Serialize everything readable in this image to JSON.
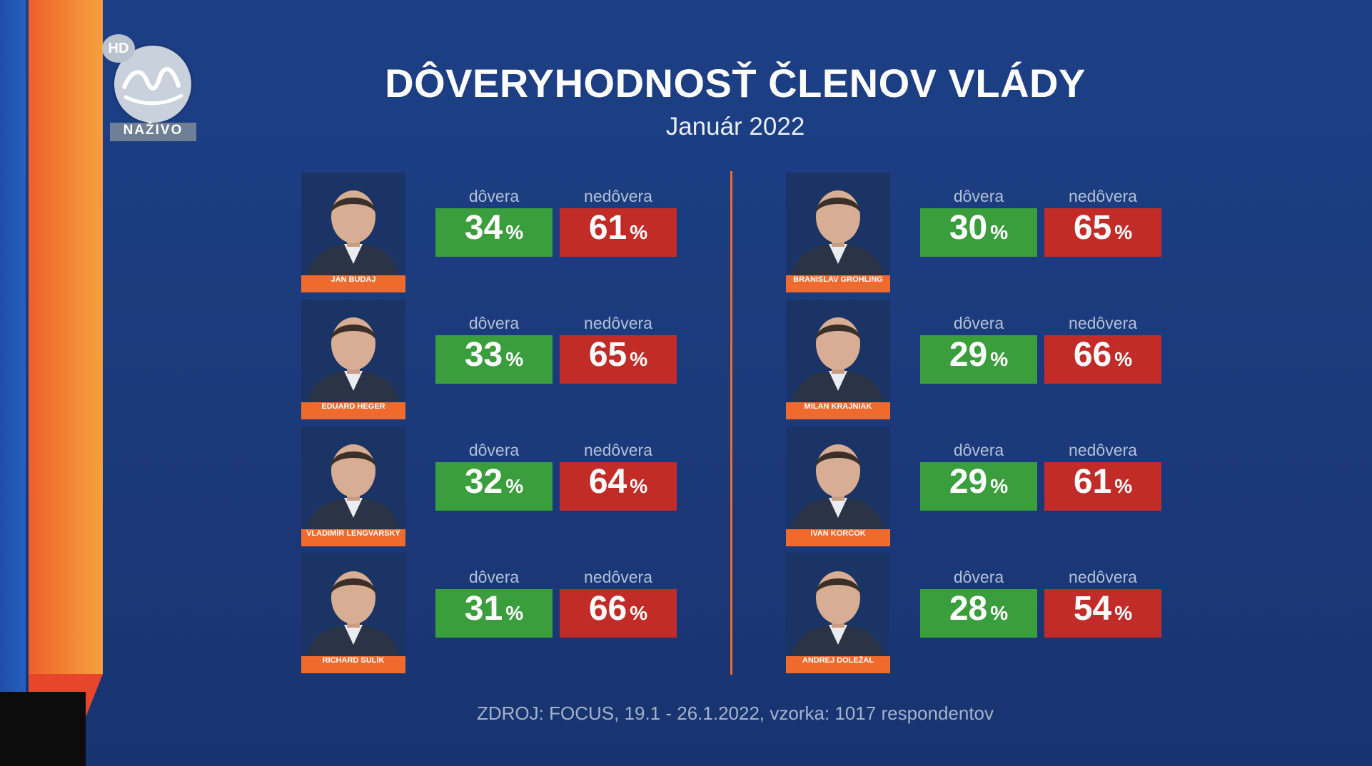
{
  "logo": {
    "hd_label": "HD",
    "live_label": "NAŽIVO"
  },
  "title": "DÔVERYHODNOSŤ ČLENOV VLÁDY",
  "subtitle": "Január 2022",
  "labels": {
    "trust": "dôvera",
    "distrust": "nedôvera",
    "percent": "%"
  },
  "colors": {
    "trust": "#3a9e3c",
    "distrust": "#c22c28",
    "accent": "#ef6a2c",
    "background": "#1b3a7c"
  },
  "ministers": [
    {
      "name": "JÁN BUDAJ",
      "trust": "34",
      "distrust": "61"
    },
    {
      "name": "EDUARD HEGER",
      "trust": "33",
      "distrust": "65"
    },
    {
      "name": "VLADIMÍR LENGVARSKÝ",
      "trust": "32",
      "distrust": "64"
    },
    {
      "name": "RICHARD SULÍK",
      "trust": "31",
      "distrust": "66"
    },
    {
      "name": "BRANISLAV GRÖHLING",
      "trust": "30",
      "distrust": "65"
    },
    {
      "name": "MILAN KRAJNIAK",
      "trust": "29",
      "distrust": "66"
    },
    {
      "name": "IVAN KORČOK",
      "trust": "29",
      "distrust": "61"
    },
    {
      "name": "ANDREJ DOLEŽAL",
      "trust": "28",
      "distrust": "54"
    }
  ],
  "source": "ZDROJ: FOCUS, 19.1 - 26.1.2022, vzorka: 1017 respondentov"
}
